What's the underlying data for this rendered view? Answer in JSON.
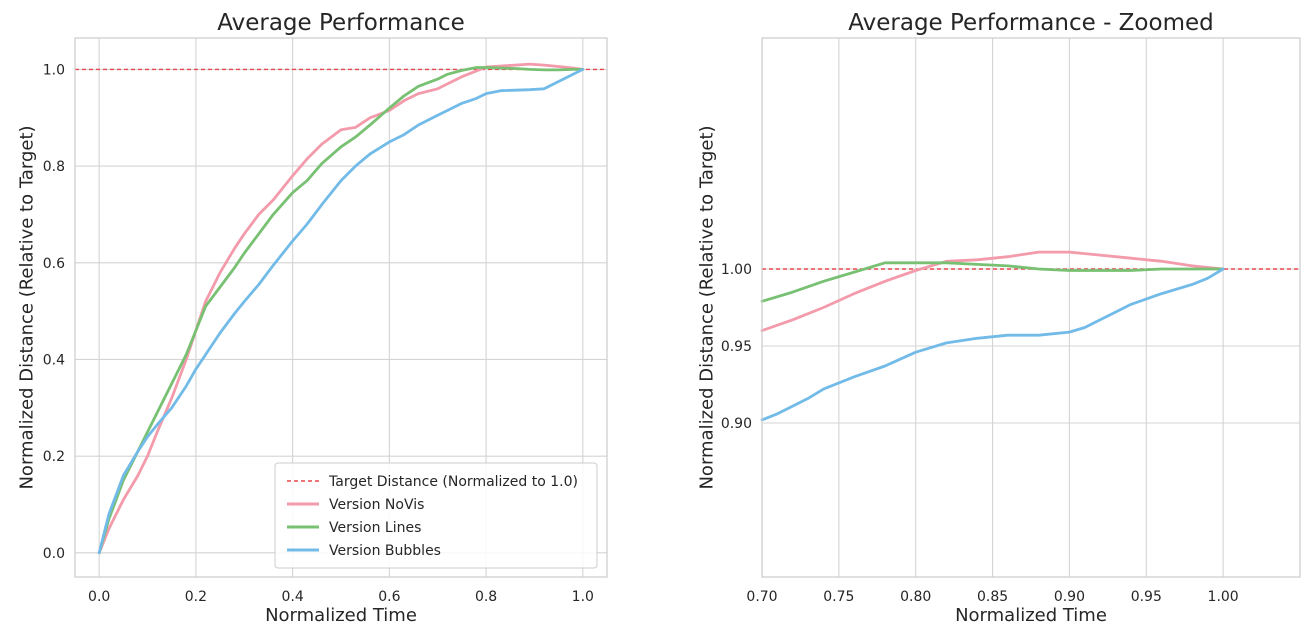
{
  "chart_data": [
    {
      "type": "line",
      "title": "Average Performance",
      "xlabel": "Normalized Time",
      "ylabel": "Normalized Distance (Relative to Target)",
      "xlim": [
        -0.05,
        1.05
      ],
      "ylim": [
        -0.05,
        1.065
      ],
      "xticks": [
        0.0,
        0.2,
        0.4,
        0.6,
        0.8,
        1.0
      ],
      "xtick_labels": [
        "0.0",
        "0.2",
        "0.4",
        "0.6",
        "0.8",
        "1.0"
      ],
      "yticks": [
        0.0,
        0.2,
        0.4,
        0.6,
        0.8,
        1.0
      ],
      "ytick_labels": [
        "0.0",
        "0.2",
        "0.4",
        "0.6",
        "0.8",
        "1.0"
      ],
      "grid": true,
      "legend_position": "lower-right",
      "reference_line": {
        "name": "Target Distance (Normalized to 1.0)",
        "y": 1.0,
        "color": "#e8474e",
        "style": "dashed"
      },
      "series": [
        {
          "name": "Version NoVis",
          "color": "#f39aab",
          "x": [
            0.0,
            0.02,
            0.05,
            0.08,
            0.1,
            0.12,
            0.15,
            0.18,
            0.2,
            0.22,
            0.25,
            0.28,
            0.3,
            0.33,
            0.36,
            0.4,
            0.43,
            0.46,
            0.5,
            0.53,
            0.56,
            0.6,
            0.63,
            0.66,
            0.7,
            0.72,
            0.75,
            0.78,
            0.8,
            0.83,
            0.86,
            0.89,
            0.92,
            0.95,
            0.98,
            1.0
          ],
          "y": [
            0.0,
            0.05,
            0.11,
            0.16,
            0.2,
            0.25,
            0.32,
            0.4,
            0.46,
            0.52,
            0.58,
            0.63,
            0.66,
            0.7,
            0.73,
            0.78,
            0.815,
            0.845,
            0.875,
            0.88,
            0.9,
            0.915,
            0.935,
            0.95,
            0.96,
            0.97,
            0.985,
            0.997,
            1.005,
            1.007,
            1.009,
            1.011,
            1.009,
            1.006,
            1.003,
            1.0
          ]
        },
        {
          "name": "Version Lines",
          "color": "#78c072",
          "x": [
            0.0,
            0.02,
            0.05,
            0.08,
            0.1,
            0.12,
            0.15,
            0.18,
            0.2,
            0.22,
            0.25,
            0.28,
            0.3,
            0.33,
            0.36,
            0.4,
            0.43,
            0.46,
            0.5,
            0.53,
            0.56,
            0.6,
            0.63,
            0.66,
            0.7,
            0.72,
            0.75,
            0.78,
            0.8,
            0.83,
            0.86,
            0.89,
            0.92,
            0.95,
            0.98,
            1.0
          ],
          "y": [
            0.0,
            0.07,
            0.15,
            0.21,
            0.25,
            0.29,
            0.35,
            0.41,
            0.46,
            0.51,
            0.55,
            0.59,
            0.62,
            0.66,
            0.7,
            0.745,
            0.77,
            0.805,
            0.84,
            0.86,
            0.885,
            0.92,
            0.945,
            0.965,
            0.98,
            0.99,
            0.998,
            1.004,
            1.004,
            1.003,
            1.002,
            1.0,
            0.999,
            0.999,
            1.0,
            1.0
          ]
        },
        {
          "name": "Version Bubbles",
          "color": "#72bbe8",
          "x": [
            0.0,
            0.02,
            0.05,
            0.08,
            0.1,
            0.12,
            0.15,
            0.18,
            0.2,
            0.22,
            0.25,
            0.28,
            0.3,
            0.33,
            0.36,
            0.4,
            0.43,
            0.46,
            0.5,
            0.53,
            0.56,
            0.6,
            0.63,
            0.66,
            0.7,
            0.72,
            0.75,
            0.78,
            0.8,
            0.83,
            0.86,
            0.89,
            0.92,
            0.95,
            0.98,
            1.0
          ],
          "y": [
            0.0,
            0.08,
            0.16,
            0.21,
            0.24,
            0.265,
            0.3,
            0.345,
            0.38,
            0.41,
            0.455,
            0.495,
            0.52,
            0.555,
            0.595,
            0.645,
            0.68,
            0.72,
            0.77,
            0.8,
            0.825,
            0.85,
            0.865,
            0.885,
            0.905,
            0.915,
            0.93,
            0.94,
            0.95,
            0.956,
            0.957,
            0.958,
            0.96,
            0.975,
            0.99,
            1.0
          ]
        }
      ]
    },
    {
      "type": "line",
      "title": "Average Performance - Zoomed",
      "xlabel": "Normalized Time",
      "ylabel": "Normalized Distance (Relative to Target)",
      "xlim": [
        0.7,
        1.05
      ],
      "ylim": [
        0.8,
        1.15
      ],
      "xticks": [
        0.7,
        0.75,
        0.8,
        0.85,
        0.9,
        0.95,
        1.0
      ],
      "xtick_labels": [
        "0.70",
        "0.75",
        "0.80",
        "0.85",
        "0.90",
        "0.95",
        "1.00"
      ],
      "yticks": [
        0.9,
        0.95,
        1.0
      ],
      "ytick_labels": [
        "0.90",
        "0.95",
        "1.00"
      ],
      "grid": true,
      "reference_line": {
        "y": 1.0,
        "color": "#e8474e",
        "style": "dashed"
      },
      "series": [
        {
          "color": "#f39aab",
          "x": [
            0.7,
            0.72,
            0.74,
            0.76,
            0.78,
            0.8,
            0.82,
            0.84,
            0.86,
            0.88,
            0.9,
            0.92,
            0.94,
            0.96,
            0.98,
            1.0
          ],
          "y": [
            0.96,
            0.967,
            0.975,
            0.984,
            0.992,
            0.999,
            1.005,
            1.006,
            1.008,
            1.011,
            1.011,
            1.009,
            1.007,
            1.005,
            1.002,
            1.0
          ]
        },
        {
          "color": "#78c072",
          "x": [
            0.7,
            0.72,
            0.74,
            0.76,
            0.78,
            0.8,
            0.82,
            0.84,
            0.86,
            0.88,
            0.9,
            0.92,
            0.94,
            0.96,
            0.98,
            1.0
          ],
          "y": [
            0.979,
            0.985,
            0.992,
            0.998,
            1.004,
            1.004,
            1.004,
            1.003,
            1.002,
            1.0,
            0.999,
            0.999,
            0.999,
            1.0,
            1.0,
            1.0
          ]
        },
        {
          "color": "#72bbe8",
          "x": [
            0.7,
            0.71,
            0.72,
            0.73,
            0.74,
            0.76,
            0.78,
            0.8,
            0.82,
            0.84,
            0.86,
            0.88,
            0.9,
            0.91,
            0.92,
            0.93,
            0.94,
            0.96,
            0.98,
            0.99,
            1.0
          ],
          "y": [
            0.902,
            0.906,
            0.911,
            0.916,
            0.922,
            0.93,
            0.937,
            0.946,
            0.952,
            0.955,
            0.957,
            0.957,
            0.959,
            0.962,
            0.967,
            0.972,
            0.977,
            0.984,
            0.99,
            0.994,
            1.0
          ]
        }
      ]
    }
  ]
}
